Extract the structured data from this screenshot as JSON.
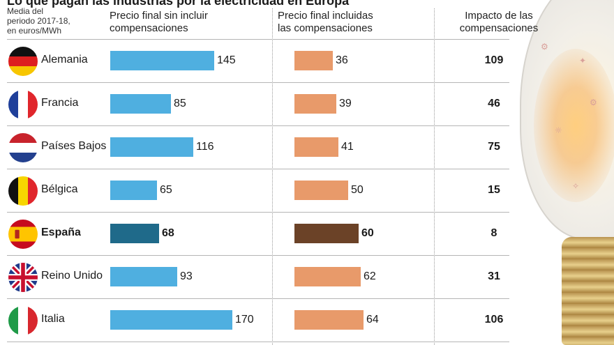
{
  "header": {
    "title": "Lo que pagan las industrias por la electricidad en Europa",
    "note_lines": [
      "Media del",
      "periodo 2017-18,",
      "en euros/MWh"
    ],
    "col1": [
      "Precio final sin incluir",
      "compensaciones"
    ],
    "col2": [
      "Precio final incluidas",
      "las compensaciones"
    ],
    "col3": [
      "Impacto de las",
      "compensaciones"
    ]
  },
  "colors": {
    "bar_without": "#4fafe0",
    "bar_with": "#e89a6a",
    "highlight_without": "#1f6a8a",
    "highlight_with": "#6b4227"
  },
  "chart_data": {
    "type": "bar",
    "categories": [
      "Alemania",
      "Francia",
      "Países Bajos",
      "Bélgica",
      "España",
      "Reino Unido",
      "Italia"
    ],
    "flags": [
      "germany-flag-icon",
      "france-flag-icon",
      "netherlands-flag-icon",
      "belgium-flag-icon",
      "spain-flag-icon",
      "uk-flag-icon",
      "italy-flag-icon"
    ],
    "highlight_index": 4,
    "series": [
      {
        "name": "Precio final sin incluir compensaciones",
        "values": [
          145,
          85,
          116,
          65,
          68,
          93,
          170
        ]
      },
      {
        "name": "Precio final incluidas las compensaciones",
        "values": [
          36,
          39,
          41,
          50,
          60,
          62,
          64
        ]
      },
      {
        "name": "Impacto de las compensaciones",
        "values": [
          109,
          46,
          75,
          15,
          8,
          31,
          106
        ]
      }
    ],
    "unit": "euros/MWh"
  }
}
